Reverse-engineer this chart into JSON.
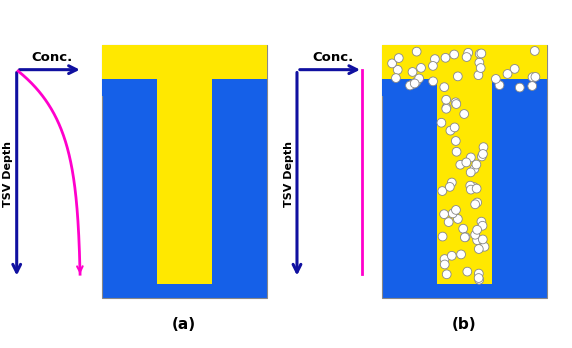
{
  "blue": "#1560e8",
  "yellow": "#FFE800",
  "white": "#FFFFFF",
  "bg": "#FFFFFF",
  "dark_blue": "#1010A0",
  "magenta": "#FF00CC",
  "conc_label": "Conc.",
  "depth_label": "TSV Depth",
  "label_a": "(a)",
  "label_b": "(b)"
}
